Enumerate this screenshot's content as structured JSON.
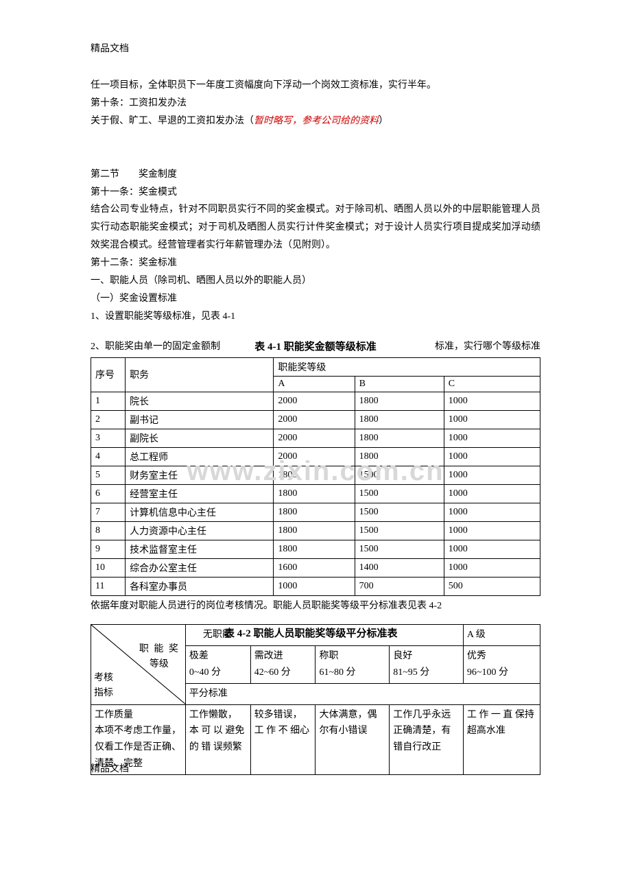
{
  "header": "精品文档",
  "footer": "精品文档",
  "body": {
    "p1": "任一项目标，全体职员下一年度工资幅度向下浮动一个岗效工资标准，实行半年。",
    "p2": "第十条：工资扣发办法",
    "p3_a": "关于假、旷工、早退的工资扣发办法（",
    "p3_red": "暂时略写，参考公司给的资料",
    "p3_b": "）",
    "p4": "第二节　　奖金制度",
    "p5": "第十一条：奖金模式",
    "p6": "结合公司专业特点，针对不同职员实行不同的奖金模式。对于除司机、晒图人员以外的中层职能管理人员实行动态职能奖金模式；对于司机及晒图人员实行计件奖金模式；对于设计人员实行项目提成奖加浮动绩效奖混合模式。经营管理者实行年薪管理办法（见附则）。",
    "p7": "第十二条：奖金标准",
    "p8": "一、职能人员（除司机、晒图人员以外的职能人员）",
    "p9": "（一）奖金设置标准",
    "p10": "1、设置职能奖等级标准，见表 4-1",
    "p11_a": "2、职能奖由单一的固定金额制",
    "p11_title": "表 4-1 职能奖金额等级标准",
    "p11_b": "标准，实行哪个等级标准",
    "p12": "依据年度对职能人员进行的岗位考核情况。职能人员职能奖等级平分标准表见表 4-2"
  },
  "table1": {
    "header_small": "职能奖等级",
    "cols": {
      "seq": "序号",
      "pos": "职务",
      "a": "A",
      "b": "B",
      "c": "C"
    },
    "rows": [
      {
        "seq": "1",
        "pos": "院长",
        "a": "2000",
        "b": "1800",
        "c": "1000"
      },
      {
        "seq": "2",
        "pos": "副书记",
        "a": "2000",
        "b": "1800",
        "c": "1000"
      },
      {
        "seq": "3",
        "pos": "副院长",
        "a": "2000",
        "b": "1800",
        "c": "1000"
      },
      {
        "seq": "4",
        "pos": "总工程师",
        "a": "2000",
        "b": "1800",
        "c": "1000"
      },
      {
        "seq": "5",
        "pos": "财务室主任",
        "a": "1800",
        "b": "1500",
        "c": "1000"
      },
      {
        "seq": "6",
        "pos": "经营室主任",
        "a": "1800",
        "b": "1500",
        "c": "1000"
      },
      {
        "seq": "7",
        "pos": "计算机信息中心主任",
        "a": "1800",
        "b": "1500",
        "c": "1000"
      },
      {
        "seq": "8",
        "pos": "人力资源中心主任",
        "a": "1800",
        "b": "1500",
        "c": "1000"
      },
      {
        "seq": "9",
        "pos": "技术监督室主任",
        "a": "1800",
        "b": "1500",
        "c": "1000"
      },
      {
        "seq": "10",
        "pos": "综合办公室主任",
        "a": "1600",
        "b": "1400",
        "c": "1000"
      },
      {
        "seq": "11",
        "pos": "各科室办事员",
        "a": "1000",
        "b": "700",
        "c": "500"
      }
    ]
  },
  "table2": {
    "title": "表 4-2  职能人员职能奖等级平分标准表",
    "diag": {
      "l1": "职 能 奖",
      "l2": "等级",
      "l3": "考核",
      "l4": "指标"
    },
    "header_row1": {
      "c1": "无职能",
      "c6": "A 级"
    },
    "header_row2": {
      "c1a": "极差",
      "c1b": "0~40 分",
      "c2a": "需改进",
      "c2b": "42~60 分",
      "c3a": "称职",
      "c3b": "61~80 分",
      "c4a": "良好",
      "c4b": "81~95 分",
      "c5a": "优秀",
      "c5b": "96~100 分"
    },
    "header_row3": "平分标准",
    "row_quality": {
      "label": "工作质量\n本项不考虑工作量，仅看工作是否正确、清楚、完整",
      "c1": "工作懒散，本 可 以 避免 的 错 误频繁",
      "c2": "较多错误，工 作 不 细心",
      "c3": "大体满意，偶尔有小错误",
      "c4": "工作几乎永远正确清楚，有错自行改正",
      "c5": "工 作 一 直 保持超高水准"
    }
  },
  "watermark": "www.zixin.com.cn"
}
